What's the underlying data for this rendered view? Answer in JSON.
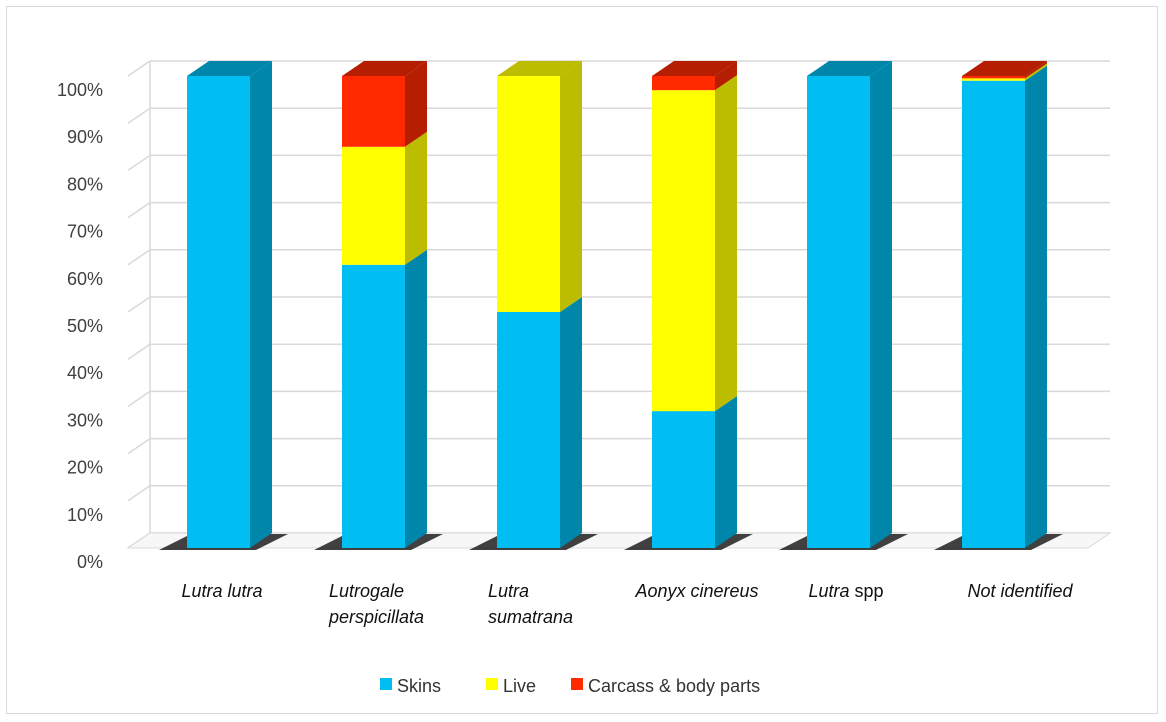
{
  "chart_data": {
    "type": "bar",
    "stacked": true,
    "style": "3d-stacked-percent",
    "title": "",
    "xlabel": "",
    "ylabel": "",
    "ylim": [
      0,
      100
    ],
    "yticks": [
      "0%",
      "10%",
      "20%",
      "30%",
      "40%",
      "50%",
      "60%",
      "70%",
      "80%",
      "90%",
      "100%"
    ],
    "grid": true,
    "legend_position": "bottom",
    "categories": [
      {
        "parts": [
          {
            "text": "Lutra lutra",
            "italic": true
          }
        ]
      },
      {
        "parts": [
          {
            "text": "Lutrogale",
            "italic": true
          }
        ],
        "line2": [
          {
            "text": "perspicillata",
            "italic": true
          }
        ]
      },
      {
        "parts": [
          {
            "text": "Lutra",
            "italic": true
          }
        ],
        "line2": [
          {
            "text": "sumatrana",
            "italic": true
          }
        ]
      },
      {
        "parts": [
          {
            "text": "Aonyx cinereus",
            "italic": true
          }
        ]
      },
      {
        "parts": [
          {
            "text": "Lutra",
            "italic": true
          },
          {
            "text": " spp",
            "italic": false
          }
        ]
      },
      {
        "parts": [
          {
            "text": "Not identified",
            "italic": true
          }
        ]
      }
    ],
    "series": [
      {
        "name": "Skins",
        "color": "#00bef2",
        "side": "#0086ab",
        "values": [
          100,
          60,
          50,
          29,
          100,
          99
        ]
      },
      {
        "name": "Live",
        "color": "#ffff00",
        "side": "#bcbc00",
        "values": [
          0,
          25,
          50,
          68,
          0,
          0.5
        ]
      },
      {
        "name": "Carcass & body parts",
        "color": "#ff2a00",
        "side": "#b51e00",
        "values": [
          0,
          15,
          0,
          3,
          0,
          0.5
        ]
      }
    ]
  }
}
